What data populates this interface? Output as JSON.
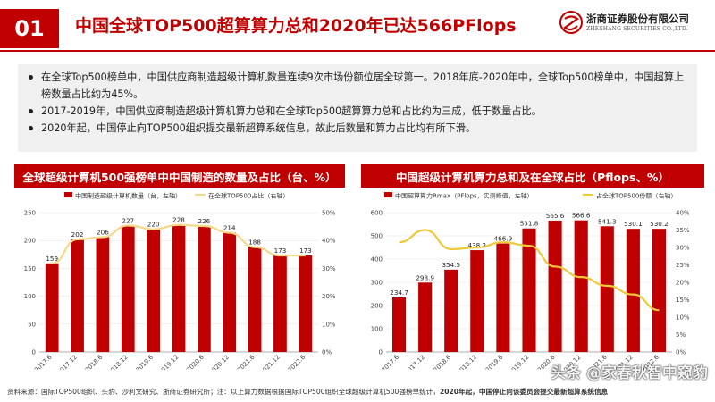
{
  "header": {
    "badge": "01",
    "title": "中国全球TOP500超算算力总和2020年已达566PFlops",
    "logo_cn": "浙商证券股份有限公司",
    "logo_en": "ZHESHANG SECURITIES CO.,LTD."
  },
  "bullets": [
    "在全球Top500榜单中，中国供应商制造超级计算机数量连续9次市场份额位居全球第一。2018年底-2020年中，全球Top500榜单中，中国超算上榜数量占比约为45%。",
    "2017-2019年，中国供应商制造超级计算机算力总和在全球Top500超算算力总和占比约为三成，低于数量占比。",
    "2020年起，中国停止向TOP500组织提交最新超算系统信息，故此后数量和算力占比均有所下滑。"
  ],
  "left_chart": {
    "heading": "全球超级计算机500强榜单中中国制造的数量及占比（台、%）"
  },
  "right_chart": {
    "heading": "中国超级计算机算力总和及在全球占比（Pflops、%）"
  },
  "chart_data": [
    {
      "type": "bar",
      "title": "全球超级计算机500强榜单中中国制造的数量及占比（台、%）",
      "categories": [
        "2017.6",
        "2017.12",
        "2018.6",
        "2018.12",
        "2019.6",
        "2019.12",
        "2020.6",
        "2020.12",
        "2021.6",
        "2021.12",
        "2022.6"
      ],
      "series": [
        {
          "name": "中国制造超级计算机数量（台，左轴）",
          "type": "bar",
          "axis": "left",
          "values": [
            159,
            202,
            206,
            227,
            220,
            228,
            226,
            214,
            188,
            173,
            173
          ]
        },
        {
          "name": "在全球TOP500占比（右轴）",
          "type": "line",
          "axis": "right",
          "values": [
            31.8,
            40.4,
            41.2,
            45.4,
            44.0,
            45.6,
            45.2,
            42.8,
            37.6,
            34.6,
            34.6
          ]
        }
      ],
      "left_axis": {
        "min": 0,
        "max": 250,
        "ticks": [
          0,
          50,
          100,
          150,
          200,
          250
        ]
      },
      "right_axis": {
        "min": 0,
        "max": 50,
        "ticks": [
          0,
          10,
          20,
          30,
          40,
          50
        ],
        "unit": "%"
      },
      "legend_position": "top",
      "bar_color": "#c00000",
      "line_color": "#f5d88a"
    },
    {
      "type": "bar",
      "title": "中国超级计算机算力总和及在全球占比（Pflops、%）",
      "categories": [
        "2017.6",
        "2017.12",
        "2018.6",
        "2018.12",
        "2019.6",
        "2019.12",
        "2020.6",
        "2020.12",
        "2021.6",
        "2021.12",
        "2022.6"
      ],
      "series": [
        {
          "name": "中国超算算力Rmax（PFlops，实测峰值，左轴）",
          "type": "bar",
          "axis": "left",
          "values": [
            234.7,
            298.9,
            354.5,
            438.2,
            466.9,
            531.8,
            565.6,
            566.6,
            541.3,
            530.1,
            530.2
          ]
        },
        {
          "name": "占全球TOP500份额（右轴）",
          "type": "line",
          "axis": "right",
          "values": [
            31.5,
            35.0,
            29.5,
            30.0,
            31.5,
            30.5,
            24.5,
            21.5,
            19.0,
            16.5,
            12.0
          ]
        }
      ],
      "left_axis": {
        "min": 0,
        "max": 600,
        "ticks": [
          0,
          100,
          200,
          300,
          400,
          500,
          600
        ]
      },
      "right_axis": {
        "min": 0,
        "max": 40,
        "ticks": [
          0,
          5,
          10,
          15,
          20,
          25,
          30,
          35,
          40
        ],
        "unit": "%"
      },
      "legend_position": "top",
      "bar_color": "#c00000",
      "line_color": "#f0c93a"
    }
  ],
  "footer": {
    "source": "资料来源：国际TOP500组织、头豹、沙利文研究、浙商证券研究所；注：以上算力数据根据国际TOP500组织全球超级计算机500强榜单统计，",
    "source_bold": "2020年起，中国停止向该委员会提交最新超算系统信息"
  },
  "watermark": "头条 @家春秋智中窥豹"
}
